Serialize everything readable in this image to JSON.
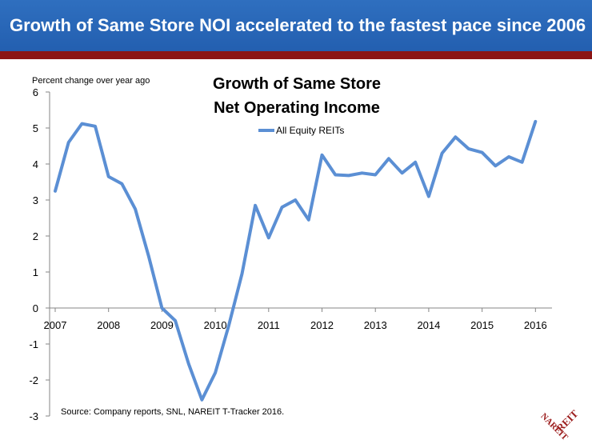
{
  "slide": {
    "title": "Growth of Same Store NOI accelerated to the fastest pace since 2006",
    "source": "Source: Company reports, SNL, NAREIT T-Tracker 2016.",
    "accent_color": "#235fb0",
    "rule_color": "#8b1515"
  },
  "logo": {
    "text": "REIT NAREIT",
    "icon": "nareit-logo-icon",
    "color": "#9b1b1b"
  },
  "chart_data": {
    "type": "line",
    "title_lines": [
      "Growth of Same Store",
      "Net Operating Income"
    ],
    "ylabel": "Percent change over year ago",
    "xlabel": "",
    "ylim": [
      -3,
      6
    ],
    "yticks": [
      6,
      5,
      4,
      3,
      2,
      1,
      0,
      -1,
      -2,
      -3
    ],
    "xlim": [
      2007,
      2016.25
    ],
    "xticks": [
      "2007",
      "2008",
      "2009",
      "2010",
      "2011",
      "2012",
      "2013",
      "2014",
      "2015",
      "2016"
    ],
    "grid": false,
    "legend": "top-center",
    "series": [
      {
        "name": "All Equity REITs",
        "color": "#5b8fd4",
        "x": [
          2007.0,
          2007.25,
          2007.5,
          2007.75,
          2008.0,
          2008.25,
          2008.5,
          2008.75,
          2009.0,
          2009.25,
          2009.5,
          2009.75,
          2010.0,
          2010.25,
          2010.5,
          2010.75,
          2011.0,
          2011.25,
          2011.5,
          2011.75,
          2012.0,
          2012.25,
          2012.5,
          2012.75,
          2013.0,
          2013.25,
          2013.5,
          2013.75,
          2014.0,
          2014.25,
          2014.5,
          2014.75,
          2015.0,
          2015.25,
          2015.5,
          2015.75,
          2016.0
        ],
        "values": [
          3.25,
          4.6,
          5.12,
          5.05,
          3.65,
          3.45,
          2.75,
          1.45,
          0.0,
          -0.35,
          -1.55,
          -2.55,
          -1.8,
          -0.5,
          0.95,
          2.85,
          1.95,
          2.8,
          3.0,
          2.45,
          4.25,
          3.7,
          3.68,
          3.75,
          3.7,
          4.15,
          3.75,
          4.05,
          3.1,
          4.3,
          4.75,
          4.42,
          4.32,
          3.95,
          4.2,
          4.05,
          5.18
        ]
      }
    ]
  }
}
